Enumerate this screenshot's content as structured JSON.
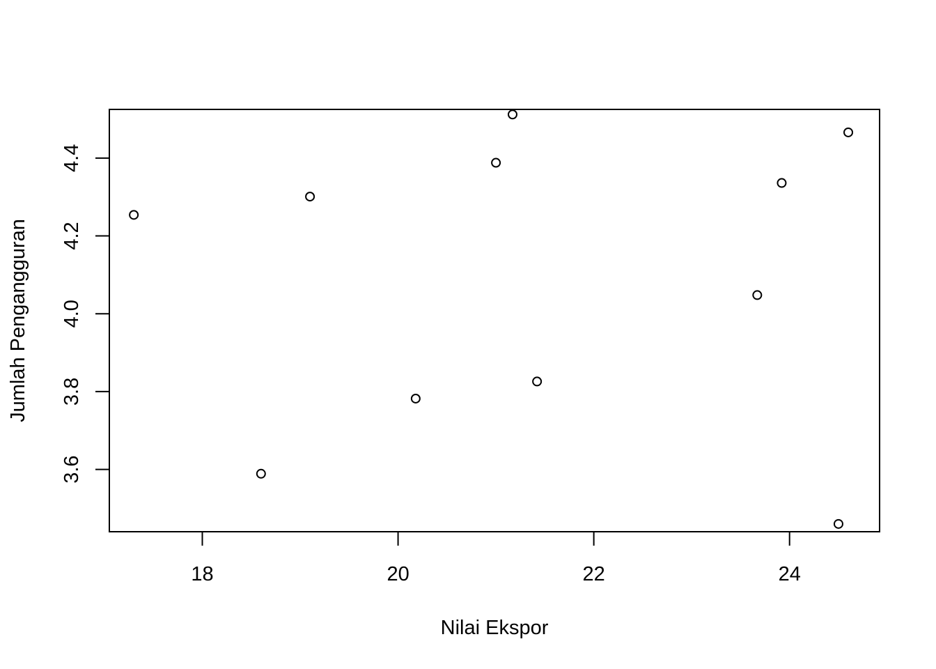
{
  "chart_data": {
    "type": "scatter",
    "title": "",
    "xlabel": "Nilai Ekspor",
    "ylabel": "Jumlah Pengangguran",
    "xlim": [
      17.05,
      24.92
    ],
    "ylim": [
      3.44,
      4.525
    ],
    "x_ticks": [
      18,
      20,
      22,
      24
    ],
    "x_tick_labels": [
      "18",
      "20",
      "22",
      "24"
    ],
    "y_ticks": [
      3.6,
      3.8,
      4.0,
      4.2,
      4.4
    ],
    "y_tick_labels": [
      "3.6",
      "3.8",
      "4.0",
      "4.2",
      "4.4"
    ],
    "marker": "open-circle",
    "grid": false,
    "points": [
      {
        "x": 17.3,
        "y": 4.254
      },
      {
        "x": 18.6,
        "y": 3.589
      },
      {
        "x": 19.1,
        "y": 4.301
      },
      {
        "x": 20.18,
        "y": 3.782
      },
      {
        "x": 21.0,
        "y": 4.388
      },
      {
        "x": 21.17,
        "y": 4.512
      },
      {
        "x": 21.42,
        "y": 3.826
      },
      {
        "x": 23.67,
        "y": 4.048
      },
      {
        "x": 23.92,
        "y": 4.336
      },
      {
        "x": 24.5,
        "y": 3.46
      },
      {
        "x": 24.6,
        "y": 4.466
      }
    ]
  }
}
